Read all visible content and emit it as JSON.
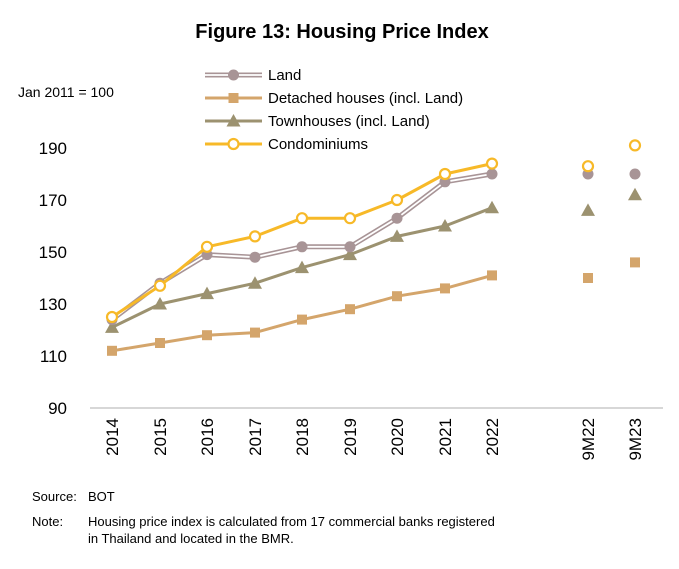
{
  "chart_data": {
    "type": "line",
    "title": "Figure 13: Housing Price Index",
    "unit_label": "Jan 2011 = 100",
    "categories": [
      "2014",
      "2015",
      "2016",
      "2017",
      "2018",
      "2019",
      "2020",
      "2021",
      "2022",
      "9M22",
      "9M23"
    ],
    "ylim": [
      90,
      200
    ],
    "yticks": [
      90,
      110,
      130,
      150,
      170,
      190
    ],
    "grid": false,
    "legend_position": "top-left",
    "series": [
      {
        "name": "Land",
        "color": "#a89496",
        "line_style": "double",
        "marker": "circle",
        "values": [
          124,
          138,
          149,
          148,
          152,
          152,
          163,
          177,
          180,
          180,
          180
        ]
      },
      {
        "name": "Detached houses (incl. Land)",
        "color": "#d4a56b",
        "line_style": "solid",
        "marker": "square",
        "values": [
          112,
          115,
          118,
          119,
          124,
          128,
          133,
          136,
          141,
          140,
          146
        ]
      },
      {
        "name": "Townhouses (incl. Land)",
        "color": "#9c9270",
        "line_style": "solid",
        "marker": "triangle",
        "values": [
          121,
          130,
          134,
          138,
          144,
          149,
          156,
          160,
          167,
          166,
          172
        ]
      },
      {
        "name": "Condominiums",
        "color": "#f7b928",
        "line_style": "solid",
        "marker": "open-circle",
        "values": [
          125,
          137,
          152,
          156,
          163,
          163,
          170,
          180,
          184,
          183,
          191
        ]
      }
    ]
  },
  "notes": {
    "source_label": "Source:",
    "source_text": "BOT",
    "note_label": "Note:",
    "note_line1": "Housing price index is calculated from 17 commercial banks registered",
    "note_line2": "in Thailand and located in the BMR."
  }
}
